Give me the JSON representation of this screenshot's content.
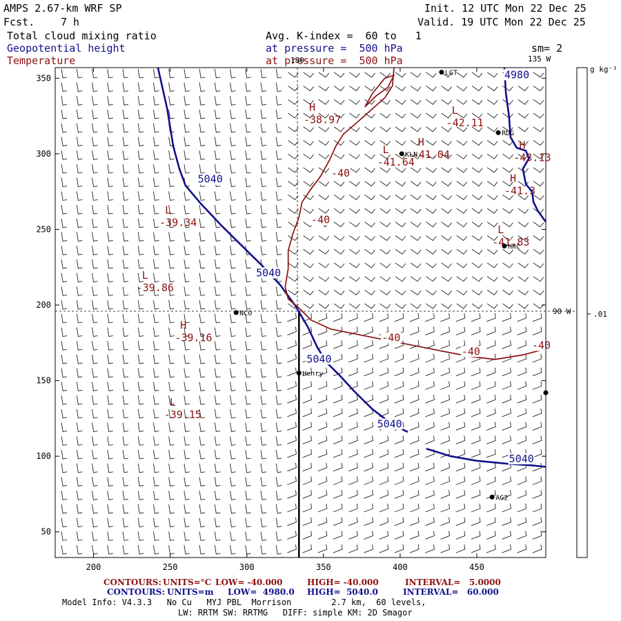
{
  "header": {
    "model": "AMPS 2.67-km WRF SP",
    "fcst_label": "Fcst.",
    "fcst_value": "7 h",
    "init": "Init. 12 UTC Mon 22 Dec 25",
    "valid": "Valid. 19 UTC Mon 22 Dec 25",
    "field1": "Total cloud mixing ratio",
    "field2": "Geopotential height",
    "field3": "Temperature",
    "avg": "Avg. K-index =  60 to   1",
    "pressure1": "at pressure =  500 hPa",
    "pressure2": "at pressure =  500 hPa",
    "sm": "sm= 2"
  },
  "colorbar": {
    "units": "g kg⁻¹",
    "label": ".01"
  },
  "map_labels": {
    "lon_180": "180",
    "lon_135w": "135 W",
    "lon_90w": "90 W"
  },
  "stations": [
    {
      "name": "LGT",
      "x": 427,
      "y": 354
    },
    {
      "name": "RDG",
      "x": 464,
      "y": 314
    },
    {
      "name": "KLN",
      "x": 401,
      "y": 300
    },
    {
      "name": "HRC",
      "x": 468,
      "y": 239
    },
    {
      "name": "NCO",
      "x": 293,
      "y": 195
    },
    {
      "name": "Henry",
      "x": 334,
      "y": 155
    },
    {
      "name": "",
      "x": 495,
      "y": 142
    },
    {
      "name": "AG2",
      "x": 460,
      "y": 73
    }
  ],
  "footer": {
    "row1_label": "CONTOURS:",
    "row1_units": "UNITS=°C",
    "row1_low": "LOW= -40.000",
    "row1_high": "HIGH= -40.000",
    "row1_interval": "INTERVAL=   5.0000",
    "row2_label": "CONTOURS:",
    "row2_units": "UNITS=m",
    "row2_low": "LOW=  4980.0",
    "row2_high": "HIGH=  5040.0",
    "row2_interval": "INTERVAL=   60.000",
    "info1": "Model Info: V4.3.3   No Cu   MYJ PBL  Morrison        2.7 km,  60 levels,",
    "info2": "LW: RRTM SW: RRTMG   DIFF: simple KM: 2D Smagor"
  },
  "colors": {
    "height": "#10108a",
    "temperature": "#8b1010",
    "frame": "#000000"
  },
  "chart_data": {
    "type": "line",
    "xlabel": "",
    "ylabel": "",
    "xlim": [
      175,
      495
    ],
    "ylim": [
      33,
      357
    ],
    "xticks": [
      200,
      250,
      300,
      350,
      400,
      450
    ],
    "yticks": [
      50,
      100,
      150,
      200,
      250,
      300,
      350
    ],
    "series": [
      {
        "name": "",
        "color": "#10108a",
        "width": 2.6,
        "points": [
          [
            242,
            357
          ],
          [
            248,
            330
          ],
          [
            252,
            305
          ],
          [
            256,
            290
          ],
          [
            260,
            279
          ],
          [
            270,
            267
          ],
          [
            283,
            253
          ],
          [
            296,
            240
          ],
          [
            310,
            226
          ],
          [
            322,
            213
          ],
          [
            332,
            199
          ],
          [
            340,
            185
          ],
          [
            346,
            172
          ],
          [
            352,
            162
          ],
          [
            360,
            154
          ],
          [
            370,
            143
          ],
          [
            382,
            131
          ],
          [
            395,
            121
          ],
          [
            405,
            116
          ]
        ]
      },
      {
        "name": "",
        "color": "#10108a",
        "width": 2.6,
        "points": [
          [
            417,
            105
          ],
          [
            433,
            100
          ],
          [
            450,
            97
          ],
          [
            470,
            95
          ],
          [
            485,
            94
          ],
          [
            495,
            93
          ]
        ]
      },
      {
        "name": "",
        "color": "#10108a",
        "width": 2.6,
        "points": [
          [
            468,
            357
          ],
          [
            469,
            340
          ],
          [
            471,
            325
          ],
          [
            472,
            311
          ],
          [
            476,
            304
          ],
          [
            482,
            302
          ],
          [
            484,
            297
          ],
          [
            480,
            290
          ],
          [
            482,
            280
          ],
          [
            486,
            275
          ],
          [
            487,
            268
          ],
          [
            490,
            262
          ],
          [
            495,
            255
          ]
        ]
      },
      {
        "name": "",
        "color": "#8b1010",
        "width": 1.7,
        "points": [
          [
            396,
            357
          ],
          [
            395,
            345
          ],
          [
            390,
            337
          ],
          [
            380,
            328
          ],
          [
            371,
            320
          ],
          [
            363,
            313
          ],
          [
            358,
            305
          ],
          [
            354,
            296
          ],
          [
            348,
            285
          ],
          [
            342,
            277
          ],
          [
            336,
            268
          ],
          [
            334,
            258
          ],
          [
            330,
            247
          ],
          [
            327,
            236
          ],
          [
            327,
            224
          ],
          [
            325,
            212
          ],
          [
            327,
            204
          ],
          [
            334,
            198
          ],
          [
            342,
            190
          ],
          [
            355,
            184
          ],
          [
            370,
            181
          ],
          [
            385,
            178
          ],
          [
            400,
            175
          ],
          [
            415,
            172
          ],
          [
            430,
            169
          ],
          [
            445,
            166
          ],
          [
            462,
            164
          ],
          [
            480,
            167
          ],
          [
            495,
            171
          ]
        ]
      },
      {
        "name": "",
        "color": "#8b1010",
        "width": 1.7,
        "points": [
          [
            377,
            331
          ],
          [
            384,
            338
          ],
          [
            392,
            344
          ],
          [
            396,
            352
          ],
          [
            390,
            350
          ],
          [
            382,
            340
          ],
          [
            377,
            331
          ]
        ]
      }
    ],
    "contour_labels": [
      {
        "text": "5040",
        "x": 268,
        "y": 281,
        "color": "#10108a"
      },
      {
        "text": "5040",
        "x": 306,
        "y": 219,
        "color": "#10108a"
      },
      {
        "text": "5040",
        "x": 339,
        "y": 162,
        "color": "#10108a"
      },
      {
        "text": "5040",
        "x": 385,
        "y": 119,
        "color": "#10108a"
      },
      {
        "text": "5040",
        "x": 471,
        "y": 96,
        "color": "#10108a"
      },
      {
        "text": "4980",
        "x": 468,
        "y": 350,
        "color": "#10108a"
      },
      {
        "text": "-40",
        "x": 355,
        "y": 285,
        "color": "#8b1010"
      },
      {
        "text": "-40",
        "x": 342,
        "y": 254,
        "color": "#8b1010"
      },
      {
        "text": "-40",
        "x": 388,
        "y": 176,
        "color": "#8b1010"
      },
      {
        "text": "-40",
        "x": 440,
        "y": 167,
        "color": "#8b1010"
      },
      {
        "text": "-40",
        "x": 486,
        "y": 171,
        "color": "#8b1010"
      }
    ],
    "extrema": [
      {
        "type": "H",
        "value": "-38.97",
        "x": 337,
        "y": 322
      },
      {
        "type": "L",
        "value": "-42.11",
        "x": 430,
        "y": 320
      },
      {
        "type": "L",
        "value": "-41.64",
        "x": 385,
        "y": 294
      },
      {
        "type": "H",
        "value": "-41.04",
        "x": 408,
        "y": 299
      },
      {
        "type": "H",
        "value": "-43.13",
        "x": 474,
        "y": 297
      },
      {
        "type": "H",
        "value": "-41.3",
        "x": 468,
        "y": 275
      },
      {
        "type": "L",
        "value": "-41.83",
        "x": 460,
        "y": 241
      },
      {
        "type": "L",
        "value": "-39.34",
        "x": 243,
        "y": 254
      },
      {
        "type": "L",
        "value": "-39.86",
        "x": 228,
        "y": 211
      },
      {
        "type": "H",
        "value": "-39.16",
        "x": 253,
        "y": 178
      },
      {
        "type": "L",
        "value": "-39.15",
        "x": 246,
        "y": 127
      }
    ],
    "cross_section_line": {
      "x": 334,
      "y_top": 196,
      "y_bottom": 33
    }
  }
}
